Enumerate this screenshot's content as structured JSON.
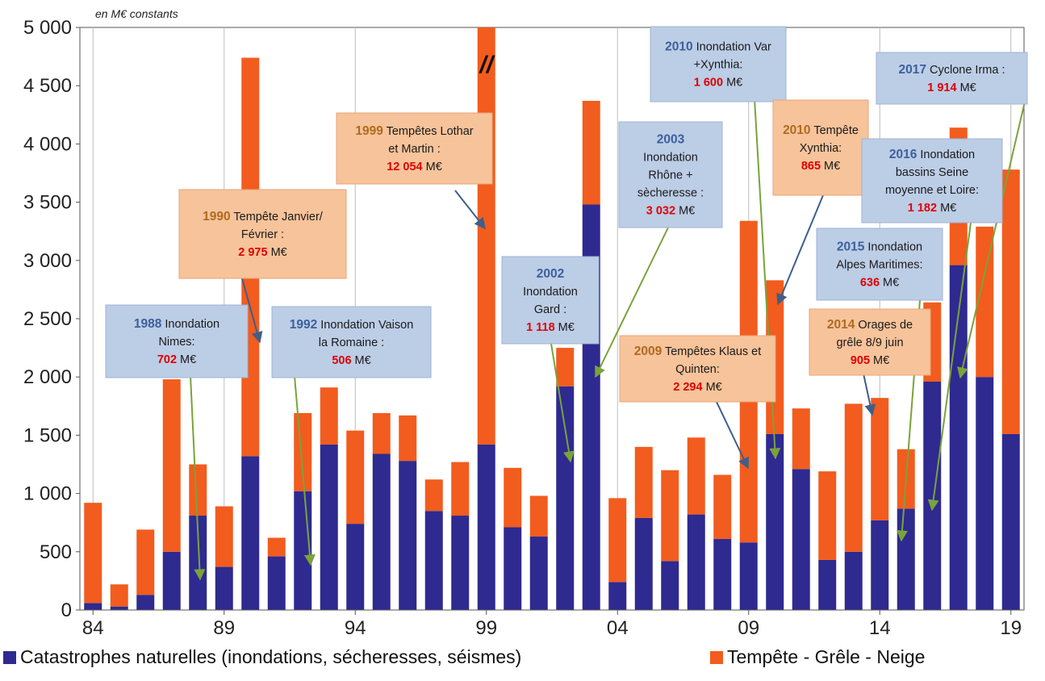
{
  "chart_data": {
    "type": "bar",
    "stacked": true,
    "unit_note": "en M€ constants",
    "y_axis": {
      "min": 0,
      "max": 5000,
      "ticks": [
        0,
        500,
        1000,
        1500,
        2000,
        2500,
        3000,
        3500,
        4000,
        4500,
        5000
      ],
      "tick_labels": [
        "0",
        "500",
        "1 000",
        "1 500",
        "2 000",
        "2 500",
        "3 000",
        "3 500",
        "4 000",
        "4 500",
        "5 000"
      ]
    },
    "x_axis": {
      "tick_labels": [
        "84",
        "89",
        "94",
        "99",
        "04",
        "09",
        "14",
        "19"
      ],
      "tick_years": [
        1984,
        1989,
        1994,
        1999,
        2004,
        2009,
        2014,
        2019
      ]
    },
    "grid": "vertical",
    "legend_position": "bottom",
    "years": [
      1984,
      1985,
      1986,
      1987,
      1988,
      1989,
      1990,
      1991,
      1992,
      1993,
      1994,
      1995,
      1996,
      1997,
      1998,
      1999,
      2000,
      2001,
      2002,
      2003,
      2004,
      2005,
      2006,
      2007,
      2008,
      2009,
      2010,
      2011,
      2012,
      2013,
      2014,
      2015,
      2016,
      2017,
      2018,
      2019
    ],
    "series": [
      {
        "name": "Catastrophes naturelles (inondations, sécheresses, séismes)",
        "color": "#2e2a8f",
        "values": [
          60,
          30,
          130,
          500,
          810,
          370,
          1320,
          460,
          1020,
          1420,
          740,
          1340,
          1280,
          850,
          810,
          1420,
          710,
          630,
          1920,
          3480,
          240,
          790,
          420,
          820,
          610,
          580,
          1510,
          1210,
          430,
          500,
          770,
          870,
          1960,
          2960,
          2000,
          1510
        ]
      },
      {
        "name": "Tempête - Grêle - Neige",
        "color": "#f25c1e",
        "values": [
          860,
          190,
          560,
          1480,
          440,
          520,
          3420,
          160,
          670,
          490,
          800,
          350,
          390,
          270,
          460,
          3580,
          510,
          350,
          330,
          890,
          720,
          610,
          780,
          660,
          550,
          2760,
          1320,
          520,
          760,
          1270,
          1050,
          510,
          680,
          1180,
          1290,
          2270
        ]
      }
    ],
    "truncated_bar": {
      "year": 1999,
      "mark": "//"
    },
    "annotations": [
      {
        "year": "1988",
        "text": "Inondation Nimes:",
        "amount": "702",
        "unit": "M€",
        "style": "blue",
        "target_year": 1988
      },
      {
        "year": "1990",
        "text": "Tempête Janvier/ Février :",
        "amount": "2 975",
        "unit": "M€",
        "style": "orange",
        "target_year": 1990
      },
      {
        "year": "1992",
        "text": "Inondation Vaison la Romaine :",
        "amount": "506",
        "unit": "M€",
        "style": "blue",
        "target_year": 1992
      },
      {
        "year": "1999",
        "text": "Tempêtes Lothar et Martin :",
        "amount": "12 054",
        "unit": "M€",
        "style": "orange",
        "target_year": 1999
      },
      {
        "year": "2002",
        "text": "Inondation Gard :",
        "amount": "1 118",
        "unit": "M€",
        "style": "blue",
        "target_year": 2002
      },
      {
        "year": "2003",
        "text": "Inondation Rhône + sècheresse :",
        "amount": "3 032",
        "unit": "M€",
        "style": "blue",
        "target_year": 2003
      },
      {
        "year": "2009",
        "text": "Tempêtes Klaus et Quinten:",
        "amount": "2 294",
        "unit": "M€",
        "style": "orange",
        "target_year": 2009
      },
      {
        "year": "2010",
        "text": "Inondation Var +Xynthia:",
        "amount": "1 600",
        "unit": "M€",
        "style": "blue",
        "target_year": 2010
      },
      {
        "year": "2010",
        "text": "Tempête Xynthia:",
        "amount": "865",
        "unit": "M€",
        "style": "orange",
        "target_year": 2010
      },
      {
        "year": "2014",
        "text": "Orages de grêle 8/9 juin",
        "amount": "905",
        "unit": "M€",
        "style": "orange",
        "target_year": 2014
      },
      {
        "year": "2015",
        "text": "Inondation Alpes Maritimes:",
        "amount": "636",
        "unit": "M€",
        "style": "blue",
        "target_year": 2015
      },
      {
        "year": "2016",
        "text": "Inondation bassins Seine moyenne et Loire:",
        "amount": "1 182",
        "unit": "M€",
        "style": "blue",
        "target_year": 2016
      },
      {
        "year": "2017",
        "text": "Cyclone Irma :",
        "amount": "1 914",
        "unit": "M€",
        "style": "blue",
        "target_year": 2017
      }
    ]
  }
}
